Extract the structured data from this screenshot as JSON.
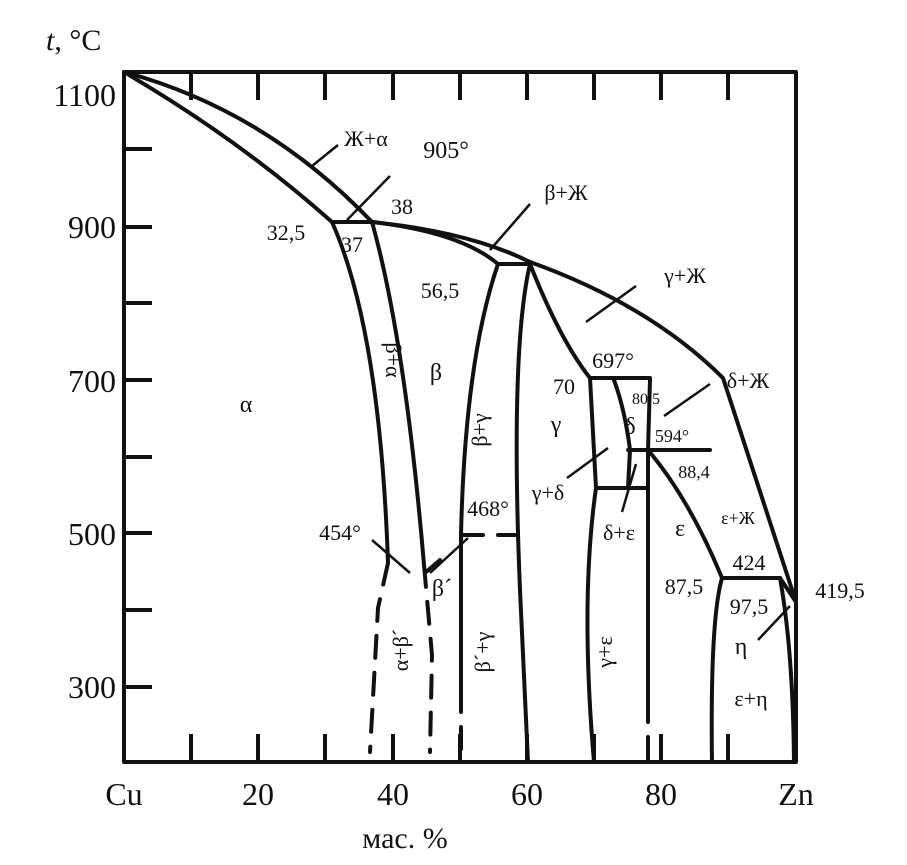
{
  "axes": {
    "y_title_italic": "t",
    "y_title_rest": ", °C",
    "y_ticks": [
      "1100",
      "900",
      "700",
      "500",
      "300"
    ],
    "x_ticks": [
      "Cu",
      "20",
      "40",
      "60",
      "80",
      "Zn"
    ],
    "x_title": "мас. %"
  },
  "regions": {
    "l_alpha": "α",
    "l_beta": "β",
    "l_gamma": "γ",
    "l_delta": "δ",
    "l_eps": "ε",
    "l_eta": "η",
    "l_liq_alpha": "Ж+α",
    "l_beta_liq": "β+Ж",
    "l_gamma_liq": "γ+Ж",
    "l_delta_liq": "δ+Ж",
    "l_eps_liq": "ε+Ж",
    "l_beta_alpha": "β+α",
    "l_beta_gamma": "β+γ",
    "l_gamma_delta": "γ+δ",
    "l_delta_eps": "δ+ε",
    "l_gamma_eps": "γ+ε",
    "l_eps_eta": "ε+η",
    "l_alpha_betap": "α+β´",
    "l_betap": "β´",
    "l_betap_gamma": "β´+γ"
  },
  "points": {
    "t905": "905°",
    "c38": "38",
    "c32_5": "32,5",
    "c37": "37",
    "c56_5": "56,5",
    "t697": "697°",
    "c70": "70",
    "c80_5": "80,5",
    "t594": "594°",
    "c88_4": "88,4",
    "t468": "468°",
    "t454": "454°",
    "c424": "424",
    "c87_5": "87,5",
    "c97_5": "97,5",
    "c419_5": "419,5"
  }
}
